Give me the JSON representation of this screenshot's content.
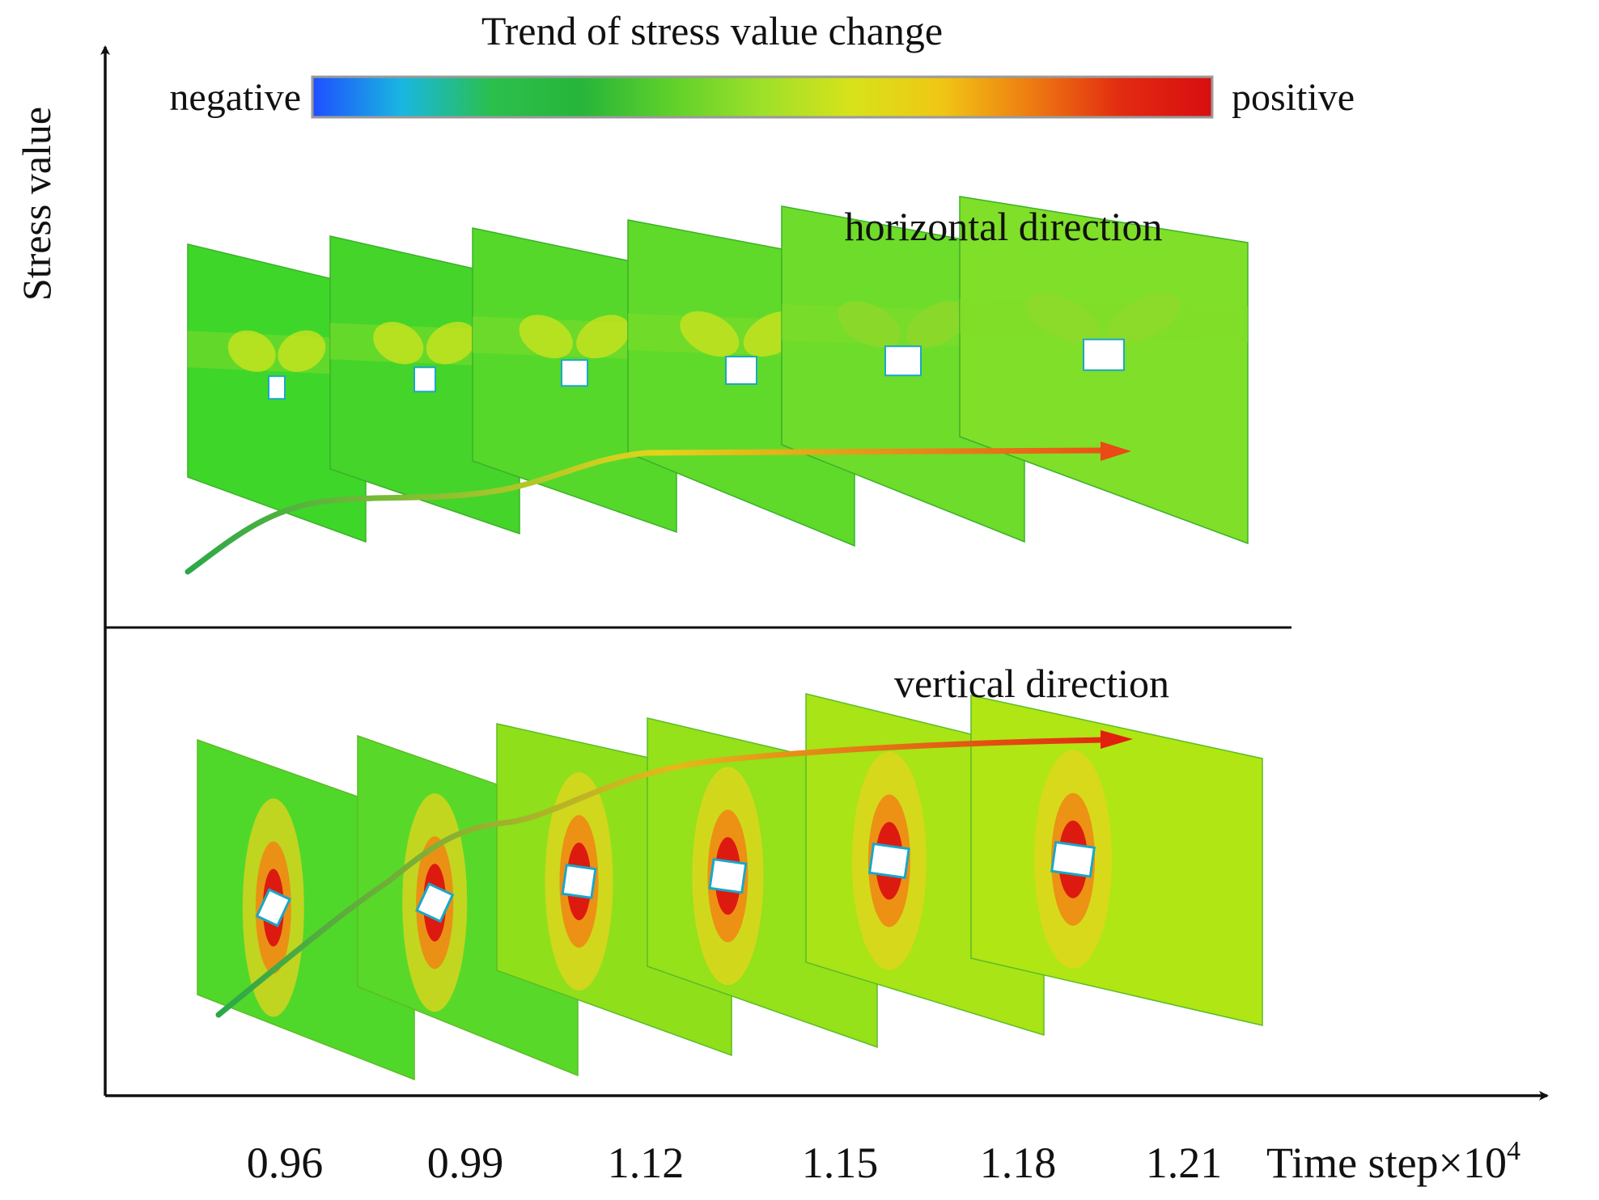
{
  "figure": {
    "colorbar": {
      "title": "Trend of stress value change",
      "negative_label": "negative",
      "positive_label": "positive",
      "stops": [
        "#1f4fff",
        "#19b7e0",
        "#2bbf4c",
        "#27b53a",
        "#5fd12a",
        "#9ee02a",
        "#d8e21a",
        "#f0c614",
        "#ee7a12",
        "#e22a10",
        "#d80e10"
      ]
    },
    "y_axis_label": "Stress value",
    "x_axis_label": "Time step×10",
    "x_axis_exponent": "4",
    "x_ticks": [
      "0.96",
      "0.99",
      "1.12",
      "1.15",
      "1.18",
      "1.21"
    ],
    "panels": [
      {
        "label": "horizontal direction",
        "plate_fills": [
          "#3fd62a",
          "#45d42a",
          "#55d82a",
          "#60da2a",
          "#6edc2a",
          "#80df28"
        ],
        "trend_colors": [
          "#2aa84a",
          "#e4d41a",
          "#ea4a16"
        ]
      },
      {
        "label": "vertical direction",
        "plate_fills": [
          "#4fd82a",
          "#58d92a",
          "#8fe01a",
          "#95e11a",
          "#a8e416",
          "#b0e614"
        ],
        "trend_colors": [
          "#2aa84a",
          "#e5b81a",
          "#e2200f"
        ]
      }
    ]
  }
}
